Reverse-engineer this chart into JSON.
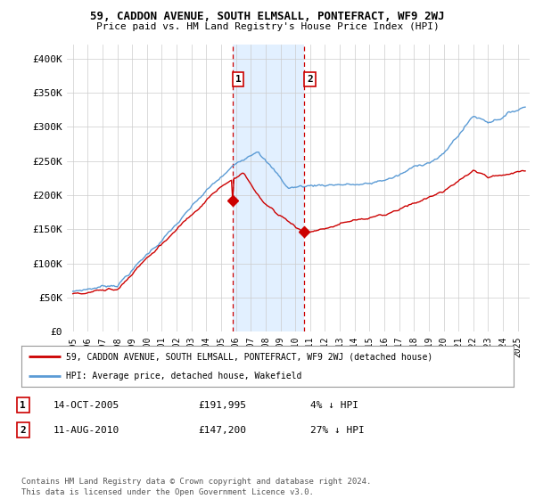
{
  "title": "59, CADDON AVENUE, SOUTH ELMSALL, PONTEFRACT, WF9 2WJ",
  "subtitle": "Price paid vs. HM Land Registry's House Price Index (HPI)",
  "ylim": [
    0,
    420000
  ],
  "hpi_color": "#5b9bd5",
  "property_color": "#cc0000",
  "purchase1_date": 2005.79,
  "purchase1_price": 191995,
  "purchase2_date": 2010.62,
  "purchase2_price": 147200,
  "legend_property": "59, CADDON AVENUE, SOUTH ELMSALL, PONTEFRACT, WF9 2WJ (detached house)",
  "legend_hpi": "HPI: Average price, detached house, Wakefield",
  "table_row1": [
    "1",
    "14-OCT-2005",
    "£191,995",
    "4% ↓ HPI"
  ],
  "table_row2": [
    "2",
    "11-AUG-2010",
    "£147,200",
    "27% ↓ HPI"
  ],
  "footer": "Contains HM Land Registry data © Crown copyright and database right 2024.\nThis data is licensed under the Open Government Licence v3.0.",
  "background_color": "#ffffff",
  "grid_color": "#cccccc",
  "shade_color": "#ddeeff"
}
